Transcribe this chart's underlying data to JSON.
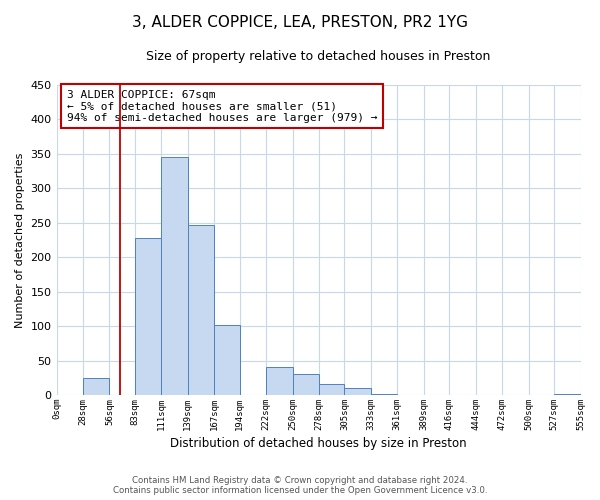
{
  "title_line1": "3, ALDER COPPICE, LEA, PRESTON, PR2 1YG",
  "title_line2": "Size of property relative to detached houses in Preston",
  "xlabel": "Distribution of detached houses by size in Preston",
  "ylabel": "Number of detached properties",
  "bar_edges": [
    0,
    28,
    56,
    83,
    111,
    139,
    167,
    194,
    222,
    250,
    278,
    305,
    333,
    361,
    389,
    416,
    444,
    472,
    500,
    527,
    555
  ],
  "bar_heights": [
    0,
    25,
    0,
    228,
    345,
    247,
    101,
    0,
    41,
    30,
    16,
    10,
    1,
    0,
    0,
    0,
    0,
    0,
    0,
    1
  ],
  "bar_color": "#c6d9f0",
  "bar_edge_color": "#4f81bd",
  "ylim": [
    0,
    450
  ],
  "xlim": [
    0,
    555
  ],
  "tick_labels": [
    "0sqm",
    "28sqm",
    "56sqm",
    "83sqm",
    "111sqm",
    "139sqm",
    "167sqm",
    "194sqm",
    "222sqm",
    "250sqm",
    "278sqm",
    "305sqm",
    "333sqm",
    "361sqm",
    "389sqm",
    "416sqm",
    "444sqm",
    "472sqm",
    "500sqm",
    "527sqm",
    "555sqm"
  ],
  "property_line_x": 67,
  "annotation_line1": "3 ALDER COPPICE: 67sqm",
  "annotation_line2": "← 5% of detached houses are smaller (51)",
  "annotation_line3": "94% of semi-detached houses are larger (979) →",
  "footnote1": "Contains HM Land Registry data © Crown copyright and database right 2024.",
  "footnote2": "Contains public sector information licensed under the Open Government Licence v3.0.",
  "background_color": "#ffffff",
  "grid_color": "#c8d8ea",
  "yticks": [
    0,
    50,
    100,
    150,
    200,
    250,
    300,
    350,
    400,
    450
  ]
}
